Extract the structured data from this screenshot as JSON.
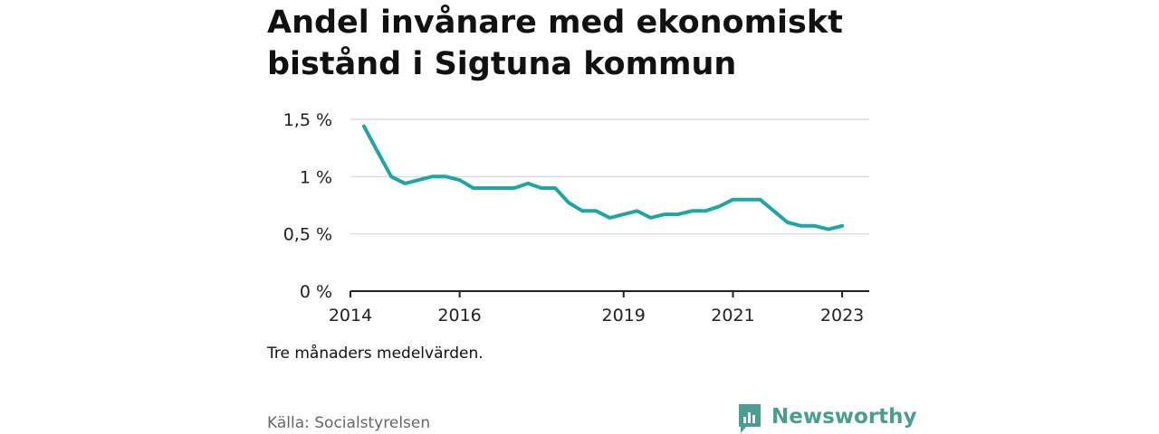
{
  "title": "Andel invånare med ekonomiskt bistånd i Sigtuna kommun",
  "note": "Tre månaders medelvärden.",
  "source": "Källa: Socialstyrelsen",
  "brand": {
    "name": "Newsworthy",
    "icon": "newsworthy-logo-icon",
    "color": "#4a9d8f"
  },
  "colors": {
    "line": "#1fa6a0",
    "grid": "#d4d4d4",
    "axis": "#222222"
  },
  "chart_data": {
    "type": "line",
    "title": "Andel invånare med ekonomiskt bistånd i Sigtuna kommun",
    "xlabel": "",
    "ylabel": "",
    "x_ticks": [
      "2014",
      "2016",
      "2019",
      "2021",
      "2023"
    ],
    "y_ticks": [
      {
        "value": 0,
        "label": "0 %"
      },
      {
        "value": 0.5,
        "label": "0,5 %"
      },
      {
        "value": 1,
        "label": "1 %"
      },
      {
        "value": 1.5,
        "label": "1,5 %"
      }
    ],
    "xlim": [
      "2014-01-01",
      "2023-07-01"
    ],
    "ylim": [
      0,
      1.5
    ],
    "grid": true,
    "legend": "none",
    "series": [
      {
        "values": [
          {
            "x": "2014-04-01",
            "y": 1.44
          },
          {
            "x": "2014-07-01",
            "y": 1.22
          },
          {
            "x": "2014-10-01",
            "y": 1.0
          },
          {
            "x": "2015-01-01",
            "y": 0.94
          },
          {
            "x": "2015-04-01",
            "y": 0.97
          },
          {
            "x": "2015-07-01",
            "y": 1.0
          },
          {
            "x": "2015-10-01",
            "y": 1.0
          },
          {
            "x": "2016-01-01",
            "y": 0.97
          },
          {
            "x": "2016-04-01",
            "y": 0.9
          },
          {
            "x": "2016-07-01",
            "y": 0.9
          },
          {
            "x": "2016-10-01",
            "y": 0.9
          },
          {
            "x": "2017-01-01",
            "y": 0.9
          },
          {
            "x": "2017-04-01",
            "y": 0.94
          },
          {
            "x": "2017-07-01",
            "y": 0.9
          },
          {
            "x": "2017-10-01",
            "y": 0.9
          },
          {
            "x": "2018-01-01",
            "y": 0.77
          },
          {
            "x": "2018-04-01",
            "y": 0.7
          },
          {
            "x": "2018-07-01",
            "y": 0.7
          },
          {
            "x": "2018-10-01",
            "y": 0.64
          },
          {
            "x": "2019-01-01",
            "y": 0.67
          },
          {
            "x": "2019-04-01",
            "y": 0.7
          },
          {
            "x": "2019-07-01",
            "y": 0.64
          },
          {
            "x": "2019-10-01",
            "y": 0.67
          },
          {
            "x": "2020-01-01",
            "y": 0.67
          },
          {
            "x": "2020-04-01",
            "y": 0.7
          },
          {
            "x": "2020-07-01",
            "y": 0.7
          },
          {
            "x": "2020-10-01",
            "y": 0.74
          },
          {
            "x": "2021-01-01",
            "y": 0.8
          },
          {
            "x": "2021-04-01",
            "y": 0.8
          },
          {
            "x": "2021-07-01",
            "y": 0.8
          },
          {
            "x": "2021-10-01",
            "y": 0.7
          },
          {
            "x": "2022-01-01",
            "y": 0.6
          },
          {
            "x": "2022-04-01",
            "y": 0.57
          },
          {
            "x": "2022-07-01",
            "y": 0.57
          },
          {
            "x": "2022-10-01",
            "y": 0.54
          },
          {
            "x": "2023-01-01",
            "y": 0.57
          }
        ]
      }
    ]
  }
}
